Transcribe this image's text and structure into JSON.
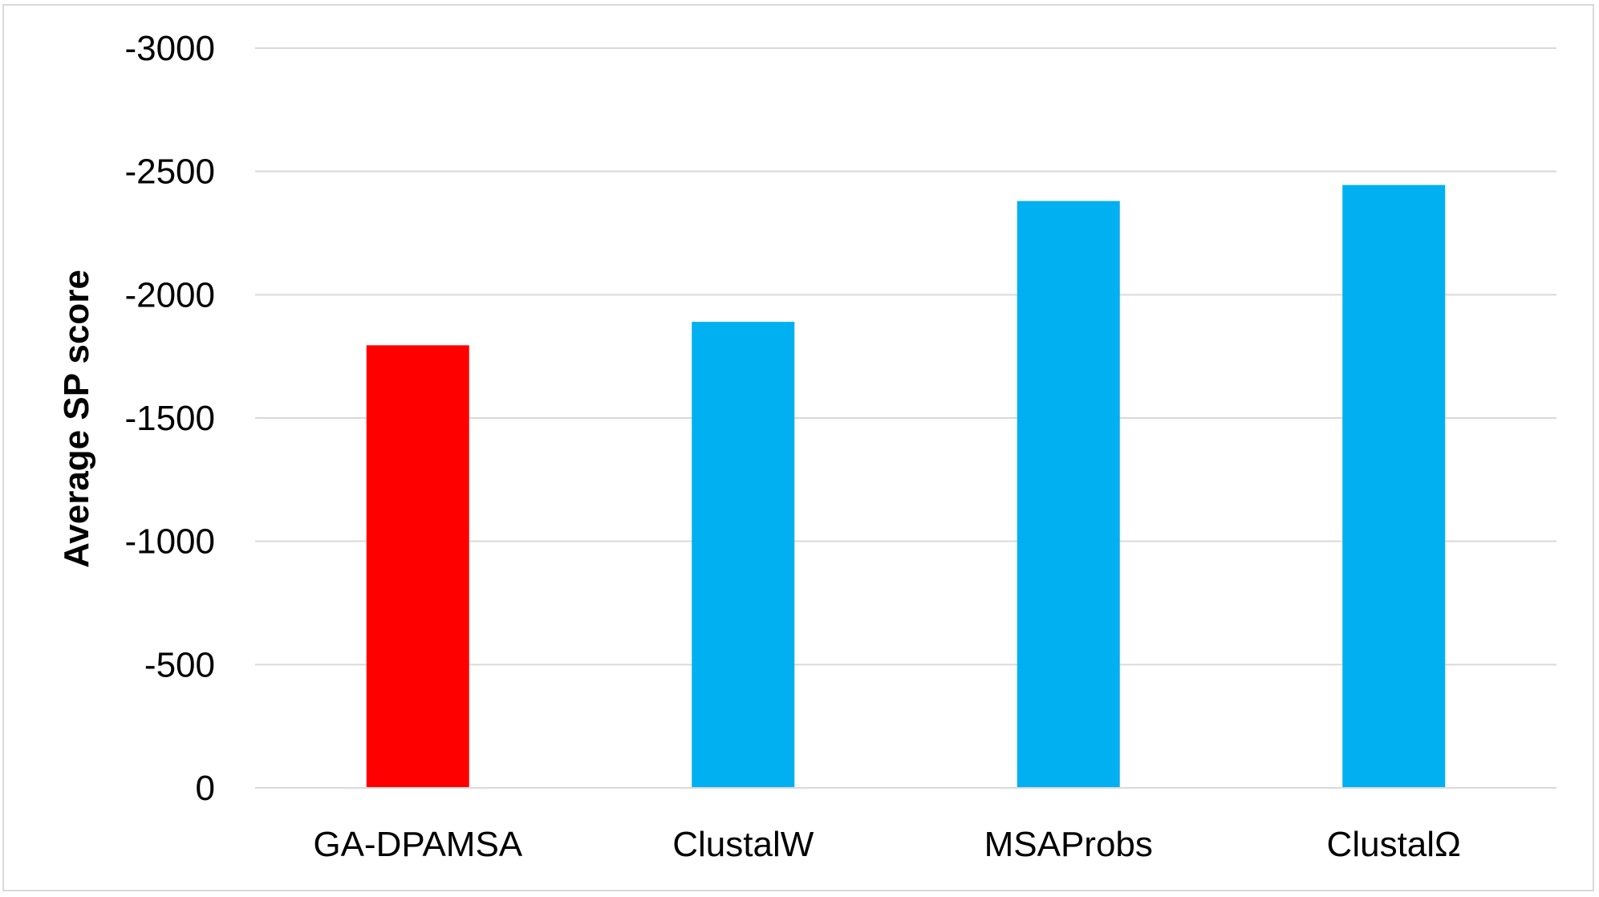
{
  "chart_data": {
    "type": "bar",
    "title": "",
    "xlabel": "",
    "ylabel": "Average SP score",
    "categories": [
      "GA-DPAMSA",
      "ClustalW",
      "MSAProbs",
      "ClustalΩ"
    ],
    "values": [
      -1795,
      -1890,
      -2380,
      -2445
    ],
    "bar_colors": [
      "#ff0000",
      "#00b0f0",
      "#00b0f0",
      "#00b0f0"
    ],
    "y_axis_reversed": true,
    "ylim": [
      0,
      -3000
    ],
    "yticks": [
      0,
      -500,
      -1000,
      -1500,
      -2000,
      -2500,
      -3000
    ],
    "ytick_labels": [
      "0",
      "-500",
      "-1000",
      "-1500",
      "-2000",
      "-2500",
      "-3000"
    ],
    "grid": true,
    "gridline_color": "#d9d9d9",
    "legend": "none"
  }
}
